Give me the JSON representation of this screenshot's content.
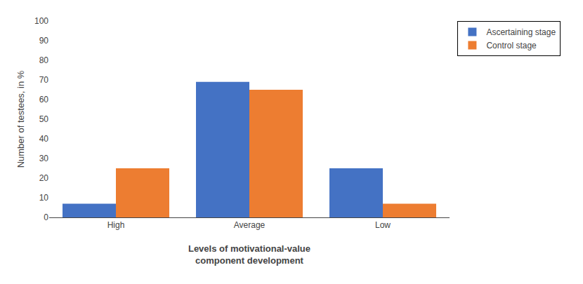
{
  "chart_data": {
    "type": "bar",
    "categories": [
      "High",
      "Average",
      "Low"
    ],
    "series": [
      {
        "name": "Ascertaining stage",
        "color": "#4472C4",
        "values": [
          7,
          69,
          25
        ]
      },
      {
        "name": "Control stage",
        "color": "#ED7D31",
        "values": [
          25,
          65,
          7
        ]
      }
    ],
    "ylabel": "Number of testees, in %",
    "xlabel": "Levels of motivational-value\ncomponent development",
    "ylim": [
      0,
      100
    ],
    "yticks": [
      0,
      10,
      20,
      30,
      40,
      50,
      60,
      70,
      80,
      90,
      100
    ],
    "grid": false,
    "legend": "upper right"
  }
}
